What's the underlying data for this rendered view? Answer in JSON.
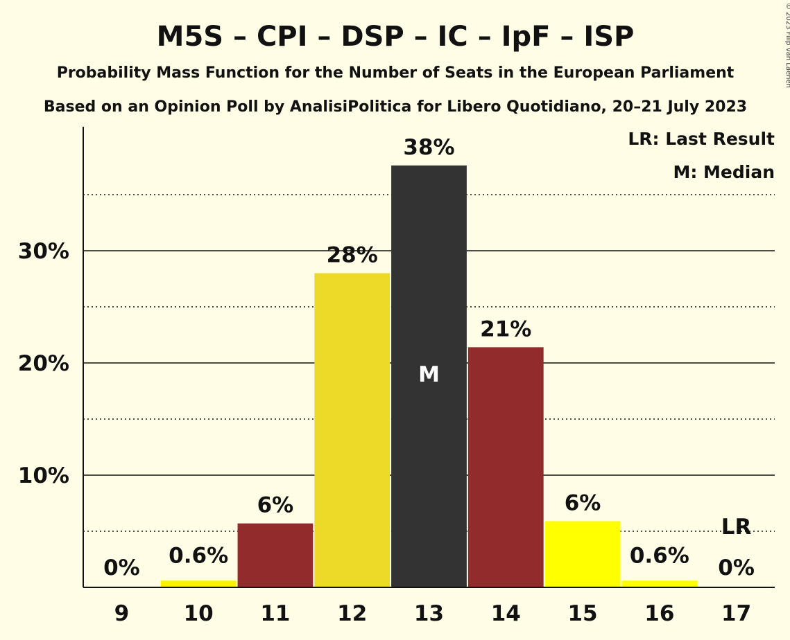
{
  "title": "M5S – CPI – DSP – IC – IpF – ISP",
  "subtitle1": "Probability Mass Function for the Number of Seats in the European Parliament",
  "subtitle2": "Based on an Opinion Poll by AnalisiPolitica for Libero Quotidiano, 20–21 July 2023",
  "copyright": "© 2023 Filip van Laenen",
  "legend": {
    "last_result": "LR: Last Result",
    "median": "M: Median"
  },
  "chart_data": {
    "type": "bar",
    "categories": [
      "9",
      "10",
      "11",
      "12",
      "13",
      "14",
      "15",
      "16",
      "17"
    ],
    "values": [
      0,
      0.6,
      5.7,
      28.0,
      37.6,
      21.4,
      5.9,
      0.6,
      0
    ],
    "labels": [
      "0%",
      "0.6%",
      "6%",
      "28%",
      "38%",
      "21%",
      "6%",
      "0.6%",
      "0%"
    ],
    "colors": [
      "#fff200",
      "#fff200",
      "#922b2b",
      "#ecd928",
      "#333333",
      "#922b2b",
      "#ffff00",
      "#ffff00",
      "#ffff00"
    ],
    "median_category": "13",
    "median_marker": "M",
    "last_result_category": "17",
    "last_result_marker": "LR",
    "ylim": [
      0,
      41
    ],
    "yticks": [
      10,
      20,
      30
    ],
    "ytick_labels": [
      "10%",
      "20%",
      "30%"
    ],
    "dotted_gridlines": [
      5,
      15,
      25,
      35
    ],
    "solid_gridlines": [
      10,
      20,
      30
    ],
    "grid": true,
    "legend_position": "top-right"
  }
}
